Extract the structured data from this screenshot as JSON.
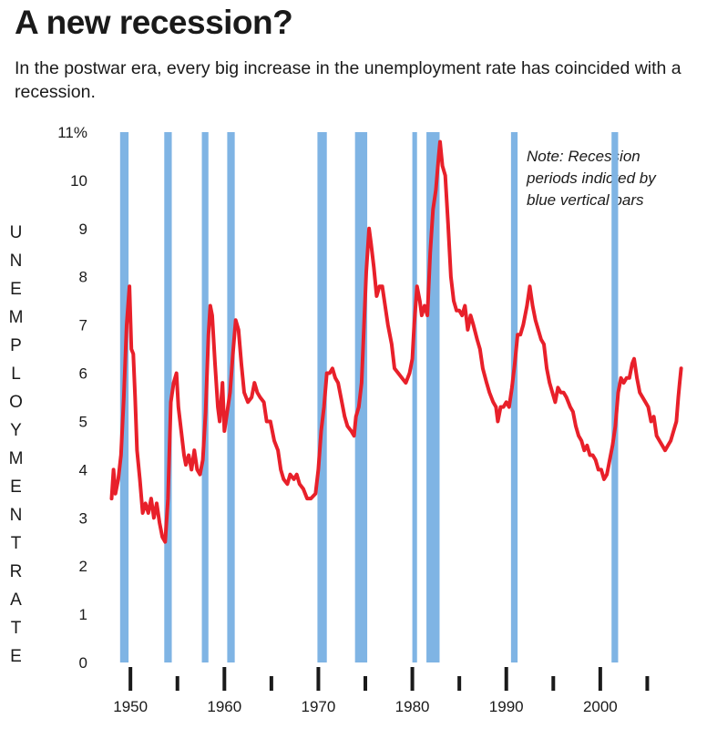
{
  "title": "A new recession?",
  "subtitle": "In the postwar era, every big increase in the unemployment rate has coincided with a recession.",
  "note": [
    "Note: Recession",
    "periods indicted by",
    "blue vertical bars"
  ],
  "colors": {
    "line": "#e8202a",
    "recession": "#7fb4e4",
    "text": "#1a1a1a"
  },
  "chart_data": {
    "type": "line",
    "title": "A new recession?",
    "ylabel": "UNEMPLOYMENT RATE",
    "xlabel": "",
    "xlim": [
      1946.3,
      2010
    ],
    "ylim": [
      0,
      11
    ],
    "yticks": [
      0,
      1,
      2,
      3,
      4,
      5,
      6,
      7,
      8,
      9,
      10,
      11
    ],
    "ytick_labels": [
      "0",
      "1",
      "2",
      "3",
      "4",
      "5",
      "6",
      "7",
      "8",
      "9",
      "10",
      "11%"
    ],
    "xticks_major": [
      1950,
      1960,
      1970,
      1980,
      1990,
      2000
    ],
    "xticks_minor": [
      1955,
      1965,
      1975,
      1985,
      1995,
      2005
    ],
    "recessions": [
      [
        1948.9,
        1949.8
      ],
      [
        1953.6,
        1954.4
      ],
      [
        1957.6,
        1958.3
      ],
      [
        1960.3,
        1961.1
      ],
      [
        1969.9,
        1970.9
      ],
      [
        1973.9,
        1975.2
      ],
      [
        1980.0,
        1980.5
      ],
      [
        1981.5,
        1982.9
      ],
      [
        1990.5,
        1991.2
      ],
      [
        2001.2,
        2001.9
      ]
    ],
    "series": [
      {
        "name": "Unemployment rate",
        "points": [
          [
            1948.0,
            3.4
          ],
          [
            1948.2,
            4.0
          ],
          [
            1948.4,
            3.5
          ],
          [
            1948.7,
            3.8
          ],
          [
            1949.0,
            4.3
          ],
          [
            1949.3,
            5.5
          ],
          [
            1949.6,
            7.0
          ],
          [
            1949.9,
            7.8
          ],
          [
            1950.1,
            6.5
          ],
          [
            1950.3,
            6.4
          ],
          [
            1950.5,
            5.5
          ],
          [
            1950.7,
            4.4
          ],
          [
            1951.0,
            3.8
          ],
          [
            1951.3,
            3.1
          ],
          [
            1951.6,
            3.3
          ],
          [
            1951.9,
            3.1
          ],
          [
            1952.2,
            3.4
          ],
          [
            1952.5,
            3.0
          ],
          [
            1952.8,
            3.3
          ],
          [
            1953.1,
            2.9
          ],
          [
            1953.4,
            2.6
          ],
          [
            1953.7,
            2.5
          ],
          [
            1954.0,
            3.4
          ],
          [
            1954.3,
            5.4
          ],
          [
            1954.6,
            5.8
          ],
          [
            1954.9,
            6.0
          ],
          [
            1955.1,
            5.3
          ],
          [
            1955.4,
            4.8
          ],
          [
            1955.7,
            4.3
          ],
          [
            1955.9,
            4.1
          ],
          [
            1956.2,
            4.3
          ],
          [
            1956.5,
            4.0
          ],
          [
            1956.8,
            4.4
          ],
          [
            1957.1,
            4.0
          ],
          [
            1957.4,
            3.9
          ],
          [
            1957.7,
            4.2
          ],
          [
            1958.0,
            5.2
          ],
          [
            1958.3,
            6.8
          ],
          [
            1958.5,
            7.4
          ],
          [
            1958.7,
            7.2
          ],
          [
            1959.0,
            6.2
          ],
          [
            1959.3,
            5.3
          ],
          [
            1959.5,
            5.0
          ],
          [
            1959.8,
            5.8
          ],
          [
            1960.0,
            4.8
          ],
          [
            1960.3,
            5.2
          ],
          [
            1960.6,
            5.6
          ],
          [
            1960.9,
            6.4
          ],
          [
            1961.2,
            7.1
          ],
          [
            1961.5,
            6.9
          ],
          [
            1961.8,
            6.2
          ],
          [
            1962.1,
            5.6
          ],
          [
            1962.5,
            5.4
          ],
          [
            1962.9,
            5.5
          ],
          [
            1963.2,
            5.8
          ],
          [
            1963.5,
            5.6
          ],
          [
            1963.8,
            5.5
          ],
          [
            1964.2,
            5.4
          ],
          [
            1964.5,
            5.0
          ],
          [
            1964.9,
            5.0
          ],
          [
            1965.3,
            4.6
          ],
          [
            1965.7,
            4.4
          ],
          [
            1966.0,
            4.0
          ],
          [
            1966.3,
            3.8
          ],
          [
            1966.7,
            3.7
          ],
          [
            1967.0,
            3.9
          ],
          [
            1967.4,
            3.8
          ],
          [
            1967.7,
            3.9
          ],
          [
            1968.0,
            3.7
          ],
          [
            1968.4,
            3.6
          ],
          [
            1968.8,
            3.4
          ],
          [
            1969.2,
            3.4
          ],
          [
            1969.7,
            3.5
          ],
          [
            1970.0,
            4.0
          ],
          [
            1970.3,
            4.8
          ],
          [
            1970.6,
            5.3
          ],
          [
            1970.9,
            6.0
          ],
          [
            1971.2,
            6.0
          ],
          [
            1971.5,
            6.1
          ],
          [
            1971.8,
            5.9
          ],
          [
            1972.1,
            5.8
          ],
          [
            1972.4,
            5.5
          ],
          [
            1972.8,
            5.1
          ],
          [
            1973.1,
            4.9
          ],
          [
            1973.5,
            4.8
          ],
          [
            1973.8,
            4.7
          ],
          [
            1974.0,
            5.1
          ],
          [
            1974.3,
            5.3
          ],
          [
            1974.6,
            5.8
          ],
          [
            1974.9,
            7.2
          ],
          [
            1975.1,
            8.1
          ],
          [
            1975.4,
            9.0
          ],
          [
            1975.6,
            8.7
          ],
          [
            1975.9,
            8.2
          ],
          [
            1976.2,
            7.6
          ],
          [
            1976.5,
            7.8
          ],
          [
            1976.8,
            7.8
          ],
          [
            1977.1,
            7.4
          ],
          [
            1977.4,
            7.0
          ],
          [
            1977.8,
            6.6
          ],
          [
            1978.1,
            6.1
          ],
          [
            1978.5,
            6.0
          ],
          [
            1978.9,
            5.9
          ],
          [
            1979.3,
            5.8
          ],
          [
            1979.7,
            6.0
          ],
          [
            1980.0,
            6.3
          ],
          [
            1980.2,
            7.0
          ],
          [
            1980.5,
            7.8
          ],
          [
            1980.8,
            7.5
          ],
          [
            1981.0,
            7.2
          ],
          [
            1981.3,
            7.4
          ],
          [
            1981.6,
            7.2
          ],
          [
            1981.9,
            8.5
          ],
          [
            1982.2,
            9.4
          ],
          [
            1982.5,
            9.8
          ],
          [
            1982.8,
            10.5
          ],
          [
            1982.95,
            10.8
          ],
          [
            1983.2,
            10.3
          ],
          [
            1983.5,
            10.1
          ],
          [
            1983.8,
            9.1
          ],
          [
            1984.1,
            8.0
          ],
          [
            1984.4,
            7.5
          ],
          [
            1984.7,
            7.3
          ],
          [
            1985.0,
            7.3
          ],
          [
            1985.3,
            7.2
          ],
          [
            1985.6,
            7.4
          ],
          [
            1985.9,
            6.9
          ],
          [
            1986.2,
            7.2
          ],
          [
            1986.5,
            7.0
          ],
          [
            1986.9,
            6.7
          ],
          [
            1987.2,
            6.5
          ],
          [
            1987.5,
            6.1
          ],
          [
            1987.9,
            5.8
          ],
          [
            1988.2,
            5.6
          ],
          [
            1988.6,
            5.4
          ],
          [
            1988.9,
            5.3
          ],
          [
            1989.1,
            5.0
          ],
          [
            1989.4,
            5.3
          ],
          [
            1989.7,
            5.3
          ],
          [
            1990.0,
            5.4
          ],
          [
            1990.3,
            5.3
          ],
          [
            1990.6,
            5.7
          ],
          [
            1990.9,
            6.2
          ],
          [
            1991.2,
            6.8
          ],
          [
            1991.5,
            6.8
          ],
          [
            1991.8,
            7.0
          ],
          [
            1992.2,
            7.4
          ],
          [
            1992.5,
            7.8
          ],
          [
            1992.8,
            7.4
          ],
          [
            1993.1,
            7.1
          ],
          [
            1993.4,
            6.9
          ],
          [
            1993.7,
            6.7
          ],
          [
            1994.0,
            6.6
          ],
          [
            1994.3,
            6.1
          ],
          [
            1994.6,
            5.8
          ],
          [
            1994.9,
            5.6
          ],
          [
            1995.2,
            5.4
          ],
          [
            1995.5,
            5.7
          ],
          [
            1995.8,
            5.6
          ],
          [
            1996.1,
            5.6
          ],
          [
            1996.4,
            5.5
          ],
          [
            1996.8,
            5.3
          ],
          [
            1997.1,
            5.2
          ],
          [
            1997.4,
            4.9
          ],
          [
            1997.7,
            4.7
          ],
          [
            1998.0,
            4.6
          ],
          [
            1998.3,
            4.4
          ],
          [
            1998.6,
            4.5
          ],
          [
            1998.9,
            4.3
          ],
          [
            1999.2,
            4.3
          ],
          [
            1999.5,
            4.2
          ],
          [
            1999.8,
            4.0
          ],
          [
            2000.1,
            4.0
          ],
          [
            2000.4,
            3.8
          ],
          [
            2000.7,
            3.9
          ],
          [
            2001.0,
            4.2
          ],
          [
            2001.3,
            4.5
          ],
          [
            2001.6,
            4.9
          ],
          [
            2001.9,
            5.6
          ],
          [
            2002.2,
            5.9
          ],
          [
            2002.5,
            5.8
          ],
          [
            2002.8,
            5.9
          ],
          [
            2003.1,
            5.9
          ],
          [
            2003.4,
            6.2
          ],
          [
            2003.6,
            6.3
          ],
          [
            2003.9,
            5.9
          ],
          [
            2004.2,
            5.6
          ],
          [
            2004.5,
            5.5
          ],
          [
            2004.8,
            5.4
          ],
          [
            2005.1,
            5.3
          ],
          [
            2005.4,
            5.0
          ],
          [
            2005.7,
            5.1
          ],
          [
            2006.0,
            4.7
          ],
          [
            2006.3,
            4.6
          ],
          [
            2006.6,
            4.5
          ],
          [
            2006.9,
            4.4
          ],
          [
            2007.2,
            4.5
          ],
          [
            2007.5,
            4.6
          ],
          [
            2007.8,
            4.8
          ],
          [
            2008.1,
            5.0
          ],
          [
            2008.3,
            5.5
          ],
          [
            2008.45,
            5.8
          ],
          [
            2008.6,
            6.1
          ]
        ]
      }
    ]
  }
}
